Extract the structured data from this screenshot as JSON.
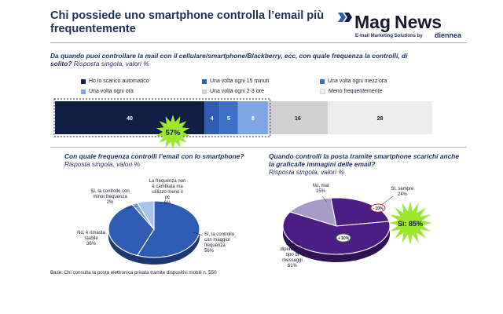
{
  "slide": {
    "title": "Chi possiede uno smartphone controlla l’email più frequentemente",
    "logo_mag": "Mag",
    "logo_news": "News",
    "logo_tagline": "E-mail Marketing Solutions by",
    "logo_brand": "diennea",
    "base_note": "Base: Chi consulta la posta elettronica privata  tramite dispositivi mobili n. 550"
  },
  "colors": {
    "navy": "#0f1f44",
    "royal": "#2f5cb5",
    "medium": "#4a7fd0",
    "light": "#7fa6e3",
    "grey": "#cfcfcf",
    "pale": "#ececec",
    "purple": "#4d1d86",
    "lavender": "#a79bc7",
    "burst": "#9be82e"
  },
  "chart_data": [
    {
      "type": "bar",
      "subtype": "stacked-100",
      "title": "Da quando puoi controllare la mail con il cellulare/smartphone/Blackberry, ecc, con quale frequenza la controlli, di solito?",
      "subtitle": "Risposta singola, valori %",
      "legend_placement": "top",
      "series": [
        {
          "name": "Ho lo scarico automatico",
          "value": 40,
          "color": "#0f1f44",
          "label_color": "#ffffff"
        },
        {
          "name": "Una volta ogni 15 minuti",
          "value": 4,
          "color": "#2f5cb5",
          "label_color": "#ffffff"
        },
        {
          "name": "Una volta ogni mezz’ora",
          "value": 5,
          "color": "#3d6fc7",
          "label_color": "#ffffff"
        },
        {
          "name": "Una volta ogni ora",
          "value": 8,
          "color": "#7fa6e3",
          "label_color": "#ffffff"
        },
        {
          "name": "Una volta ogni 2-3 ore",
          "value": 16,
          "color": "#cfcfcf",
          "label_color": "#1a1a2e"
        },
        {
          "name": "Meno frequentemente",
          "value": 28,
          "color": "#ececec",
          "label_color": "#1a1a2e"
        }
      ],
      "annotation": "57%",
      "xlim": [
        0,
        101
      ]
    },
    {
      "type": "pie",
      "title": "Con quale frequenza controlli l’email con lo smartphone?",
      "subtitle": "Risposta singola, valori %",
      "slices": [
        {
          "label": "Sì, la controllo con maggior frequenza",
          "value": 56,
          "value_label": "56%",
          "color": "#2f5cb5"
        },
        {
          "label": "No, è rimasta stabile",
          "value": 36,
          "value_label": "36%",
          "color": "#2f5cb5"
        },
        {
          "label": "Sì, la controllo con minor frequenza",
          "value": 2,
          "value_label": "2%",
          "color": "#7fa6e3"
        },
        {
          "label": "La frequenza non è cambiata ma utilizzo meno il pc",
          "value": 6,
          "value_label": "6%",
          "color": "#a9c2ec"
        }
      ]
    },
    {
      "type": "pie",
      "title": "Quando controlli la posta tramite smartphone scarichi anche la grafica/le immagini delle email?",
      "subtitle": "Risposta singola, valori %",
      "slices": [
        {
          "label": "No, mai",
          "value": 15,
          "value_label": "15%",
          "color": "#a79bc7"
        },
        {
          "label": "Sì, sempre",
          "value": 24,
          "value_label": "24%",
          "color": "#4d1d86"
        },
        {
          "label": "Sì, ma dipende dal tipo di messaggi",
          "value": 61,
          "value_label": "61%",
          "color": "#4d1d86"
        }
      ],
      "annotations": {
        "burst": "Sì: 85%",
        "badge_sempre": "- 10%",
        "badge_dipende": "+ 10%"
      }
    }
  ]
}
